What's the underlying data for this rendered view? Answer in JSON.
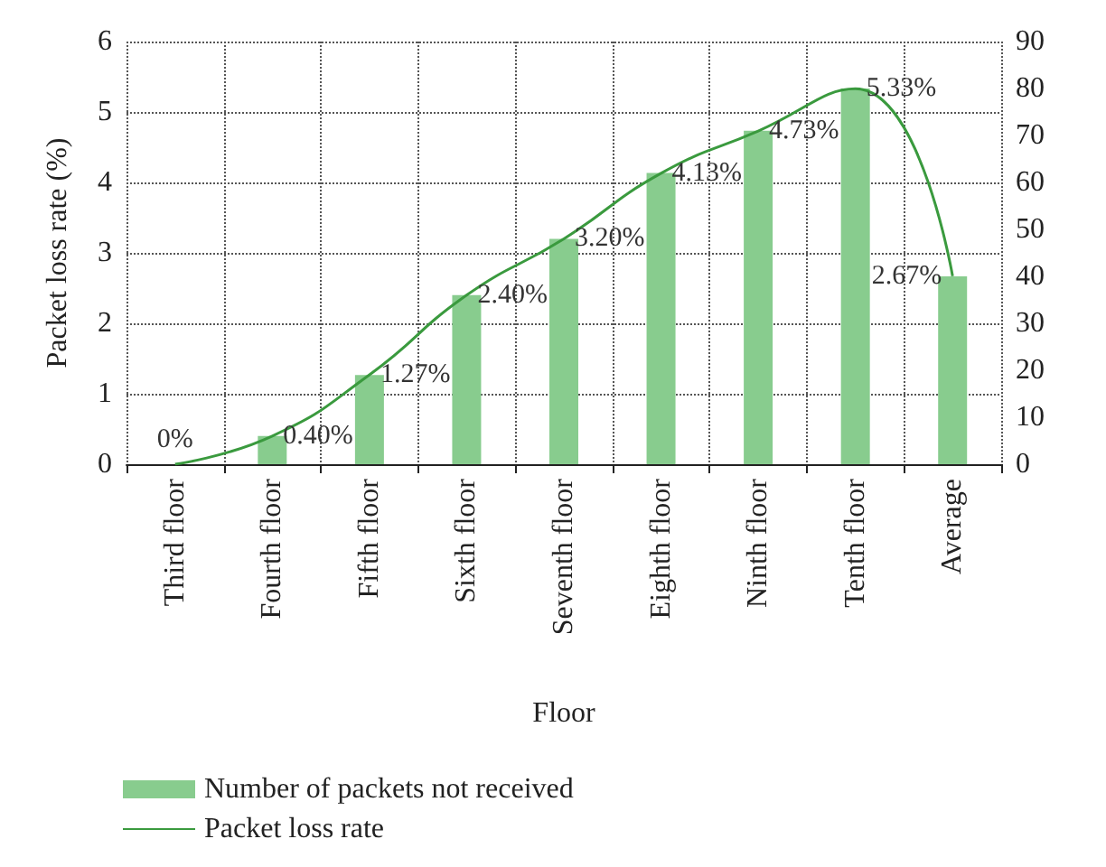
{
  "chart_data": {
    "type": "bar",
    "xlabel": "Floor",
    "ylabel": "Packet loss rate (%)",
    "categories": [
      "Third floor",
      "Fourth floor",
      "Fifth floor",
      "Sixth floor",
      "Seventh floor",
      "Eighth floor",
      "Ninth floor",
      "Tenth floor",
      "Average"
    ],
    "series": [
      {
        "name": "Number of packets not received",
        "axis": "y2",
        "color": "#88cc8e",
        "values": [
          0,
          6,
          19,
          36,
          48,
          62,
          71,
          80,
          40
        ]
      },
      {
        "name": "Packet loss rate",
        "type": "line",
        "color": "#3a9a3e",
        "values": [
          0,
          0.4,
          1.27,
          2.4,
          3.2,
          4.13,
          4.73,
          5.33,
          2.67
        ],
        "value_labels": [
          "0%",
          "0.40%",
          "1.27%",
          "2.40%",
          "3.20%",
          "4.13%",
          "4.73%",
          "5.33%",
          "2.67%"
        ]
      }
    ],
    "ylim": [
      0,
      6
    ],
    "yticks": [
      0,
      1,
      2,
      3,
      4,
      5,
      6
    ],
    "y2lim": [
      0,
      90
    ],
    "y2ticks": [
      0,
      10,
      20,
      30,
      40,
      50,
      60,
      70,
      80,
      90
    ],
    "grid": true,
    "legend": "bottom left",
    "marker": "none",
    "line_style": "solid"
  }
}
